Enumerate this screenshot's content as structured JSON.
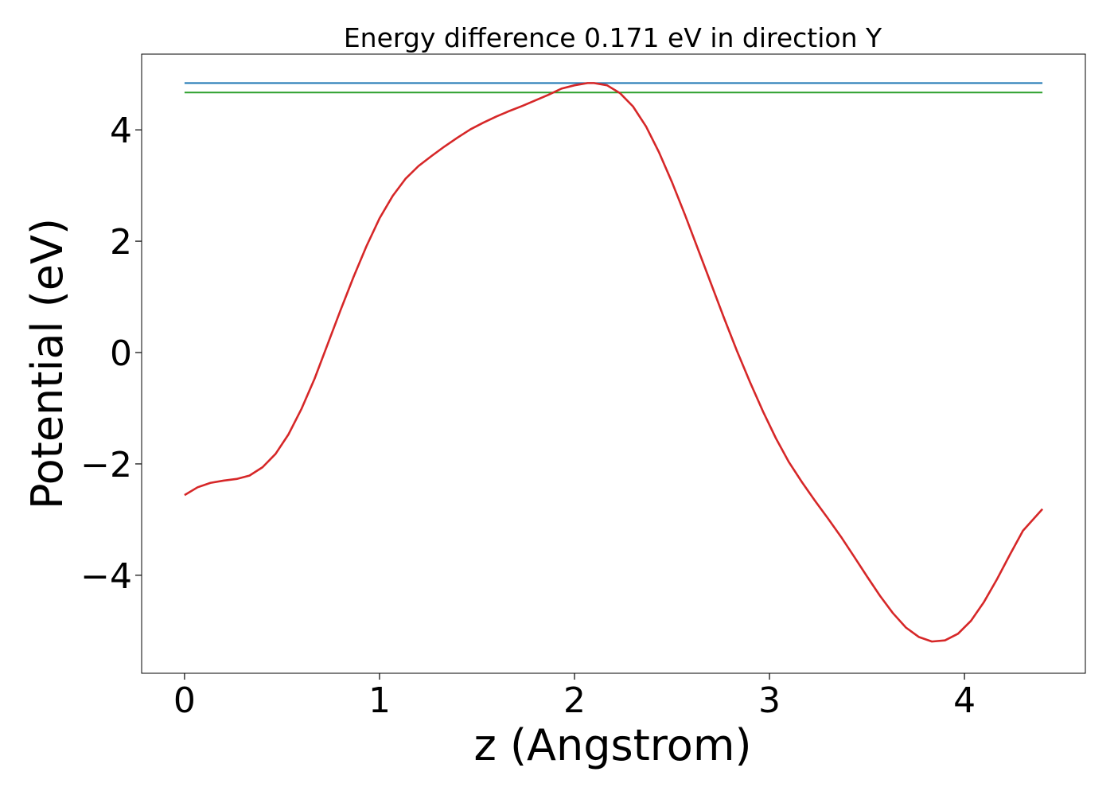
{
  "chart_data": {
    "type": "line",
    "title": "Energy difference 0.171 eV in direction Y",
    "xlabel": "z (Angstrom)",
    "ylabel": "Potential (eV)",
    "xlim": [
      -0.22,
      4.62
    ],
    "ylim": [
      -5.76,
      5.36
    ],
    "xticks": [
      0,
      1,
      2,
      3,
      4
    ],
    "xtick_labels": [
      "0",
      "1",
      "2",
      "3",
      "4"
    ],
    "yticks": [
      -4,
      -2,
      0,
      2,
      4
    ],
    "ytick_labels": [
      "−4",
      "−2",
      "0",
      "2",
      "4"
    ],
    "grid": false,
    "series": [
      {
        "color": "#1f77b4",
        "x": [
          0,
          4.4
        ],
        "y": [
          4.84,
          4.84
        ]
      },
      {
        "color": "#2ca02c",
        "x": [
          0,
          4.4
        ],
        "y": [
          4.67,
          4.67
        ]
      },
      {
        "color": "#d62728",
        "x": [
          0,
          0.067,
          0.133,
          0.2,
          0.267,
          0.333,
          0.4,
          0.467,
          0.533,
          0.6,
          0.667,
          0.733,
          0.8,
          0.867,
          0.933,
          1.0,
          1.067,
          1.133,
          1.2,
          1.267,
          1.333,
          1.4,
          1.467,
          1.533,
          1.6,
          1.667,
          1.733,
          1.8,
          1.867,
          1.933,
          2.0,
          2.067,
          2.1,
          2.167,
          2.233,
          2.3,
          2.367,
          2.433,
          2.5,
          2.567,
          2.633,
          2.7,
          2.767,
          2.833,
          2.9,
          2.967,
          3.033,
          3.1,
          3.167,
          3.233,
          3.3,
          3.367,
          3.433,
          3.5,
          3.567,
          3.633,
          3.7,
          3.767,
          3.833,
          3.9,
          3.967,
          4.033,
          4.1,
          4.167,
          4.233,
          4.3,
          4.4
        ],
        "y": [
          -2.56,
          -2.42,
          -2.34,
          -2.3,
          -2.27,
          -2.21,
          -2.06,
          -1.82,
          -1.47,
          -1.01,
          -0.47,
          0.14,
          0.76,
          1.36,
          1.91,
          2.41,
          2.81,
          3.12,
          3.35,
          3.53,
          3.7,
          3.86,
          4.01,
          4.13,
          4.24,
          4.34,
          4.43,
          4.53,
          4.63,
          4.74,
          4.8,
          4.84,
          4.84,
          4.8,
          4.66,
          4.42,
          4.06,
          3.6,
          3.06,
          2.47,
          1.86,
          1.24,
          0.62,
          0.03,
          -0.53,
          -1.06,
          -1.54,
          -1.97,
          -2.33,
          -2.66,
          -2.98,
          -3.31,
          -3.66,
          -4.02,
          -4.37,
          -4.68,
          -4.94,
          -5.11,
          -5.19,
          -5.17,
          -5.05,
          -4.82,
          -4.48,
          -4.07,
          -3.63,
          -3.2,
          -2.81
        ]
      }
    ]
  }
}
